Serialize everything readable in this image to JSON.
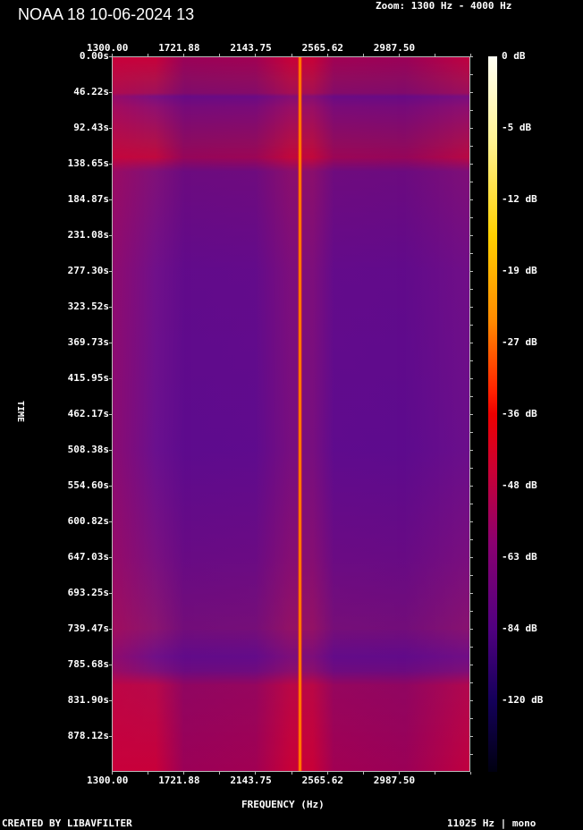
{
  "title": "NOAA 18 10-06-2024 13",
  "zoom_label": "Zoom: 1300 Hz - 4000 Hz",
  "footer_left": "CREATED BY LIBAVFILTER",
  "footer_right": "11025 Hz | mono",
  "chart_data": {
    "type": "heatmap",
    "title": "NOAA 18 10-06-2024 13",
    "xlabel": "FREQUENCY (Hz)",
    "ylabel": "TIME",
    "x_ticks": [
      "1300.00",
      "1721.88",
      "2143.75",
      "2565.62",
      "2987.50"
    ],
    "y_ticks": [
      "0.00s",
      "46.22s",
      "92.43s",
      "138.65s",
      "184.87s",
      "231.08s",
      "277.30s",
      "323.52s",
      "369.73s",
      "415.95s",
      "462.17s",
      "508.38s",
      "554.60s",
      "600.82s",
      "647.03s",
      "693.25s",
      "739.47s",
      "785.68s",
      "831.90s",
      "878.12s"
    ],
    "colorbar_ticks": [
      "0 dB",
      "-5 dB",
      "-12 dB",
      "-19 dB",
      "-27 dB",
      "-36 dB",
      "-48 dB",
      "-63 dB",
      "-84 dB",
      "-120 dB"
    ],
    "xlim": [
      1300,
      4000
    ],
    "signal_frequency_hz": 2400,
    "colormap": [
      "#fffff4",
      "#ffd000",
      "#ee0000",
      "#8a0070",
      "#14005a",
      "#000010"
    ]
  }
}
